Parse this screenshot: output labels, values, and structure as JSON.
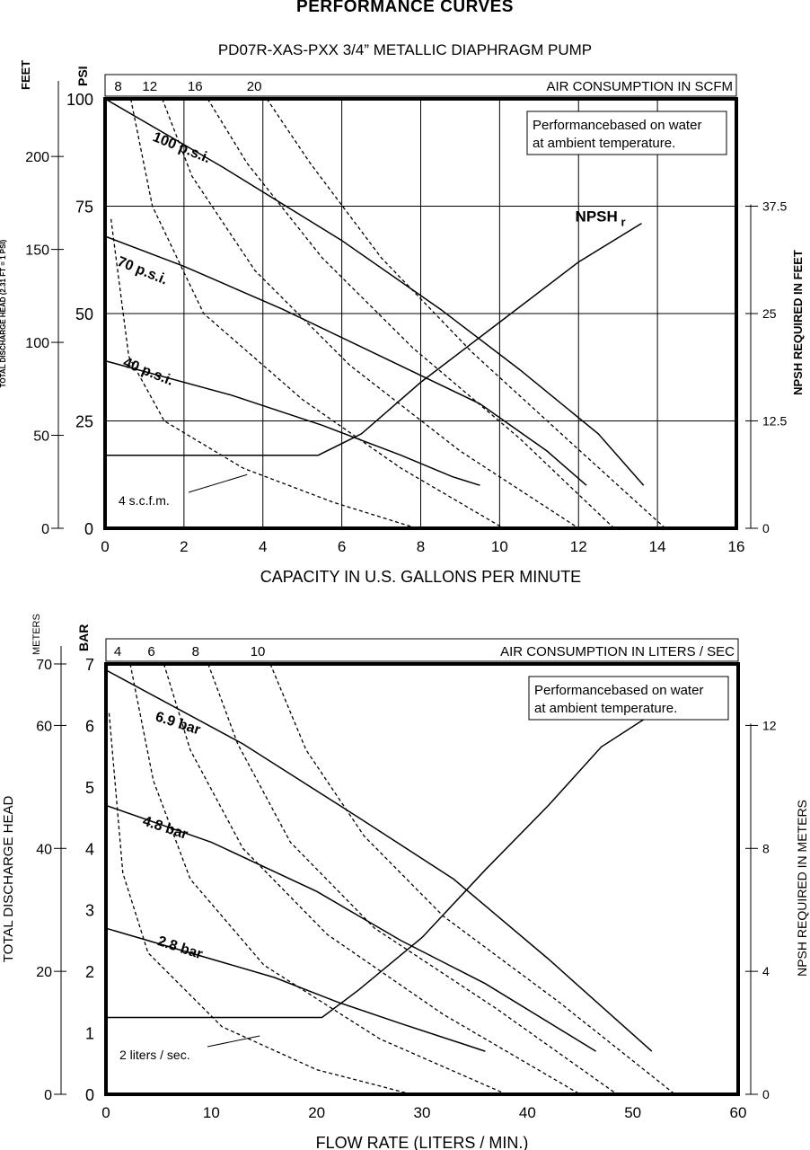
{
  "page": {
    "heading": "PERFORMANCE CURVES",
    "subheading": "PD07R-XAS-PXX 3/4” METALLIC DIAPHRAGM PUMP"
  },
  "chart_data": [
    {
      "type": "line",
      "air_axis_label": "AIR CONSUMPTION IN SCFM",
      "air_ticks": [
        8,
        12,
        16,
        20
      ],
      "xlabel": "CAPACITY IN U.S. GALLONS PER MINUTE",
      "xlim": [
        0,
        16
      ],
      "xticks": [
        0,
        2,
        4,
        6,
        8,
        10,
        12,
        14,
        16
      ],
      "ylabel": "PSI",
      "ylim": [
        0,
        100
      ],
      "yticks": [
        0,
        25,
        50,
        75,
        100
      ],
      "y_outer_label": "FEET",
      "y_outer_sublabel": "TOTAL DISCHARGE HEAD (2.31 FT = 1 PSI)",
      "y_outer_lim": [
        0,
        231
      ],
      "y_outer_ticks": [
        0,
        50,
        100,
        150,
        200
      ],
      "y2label": "NPSH REQUIRED IN FEET",
      "y2lim": [
        0,
        50
      ],
      "y2ticks": [
        0,
        12.5,
        25,
        37.5
      ],
      "grid": true,
      "note_line1": "Performancebased on water",
      "note_line2": "at ambient temperature.",
      "npsh_label": "NPSH",
      "npsh_sub": "r",
      "air_label": "4 s.c.f.m.",
      "air_label_points_to": [
        3.6,
        12.5
      ],
      "pressure_series": [
        {
          "name": "100 p.s.i.",
          "label_at": [
            1.05,
            92
          ],
          "x": [
            0,
            3,
            6,
            8.5,
            10.5,
            12.5,
            13.65
          ],
          "y": [
            100,
            84,
            67,
            51,
            37,
            22,
            10
          ]
        },
        {
          "name": "70 p.s.i.",
          "label_at": [
            0.15,
            63
          ],
          "x": [
            0,
            2,
            4.5,
            7,
            9.5,
            11.2,
            12.2
          ],
          "y": [
            68,
            61,
            51,
            40,
            29,
            18,
            10
          ]
        },
        {
          "name": "40 p.s.i.",
          "label_at": [
            0.3,
            39.5
          ],
          "x": [
            0,
            3.2,
            5.5,
            7.5,
            8.8,
            9.5
          ],
          "y": [
            39,
            31,
            24,
            17,
            12,
            10
          ]
        }
      ],
      "air_series": [
        {
          "name": "4",
          "x": [
            0.15,
            0.6,
            1.5,
            3.5,
            5.8,
            7.9
          ],
          "y": [
            72,
            40,
            25,
            14,
            6,
            0
          ]
        },
        {
          "name": "8",
          "x": [
            0.65,
            1.2,
            2.5,
            5,
            7.5,
            10.1
          ],
          "y": [
            100,
            75,
            50,
            30,
            14,
            0
          ]
        },
        {
          "name": "12",
          "x": [
            1.45,
            2.2,
            3.8,
            6.2,
            9,
            12
          ],
          "y": [
            100,
            82,
            60,
            38,
            18,
            0
          ]
        },
        {
          "name": "16",
          "x": [
            2.6,
            3.6,
            5.5,
            7.8,
            10.5,
            12.9
          ],
          "y": [
            100,
            85,
            63,
            42,
            21,
            0
          ]
        },
        {
          "name": "20",
          "x": [
            4.1,
            5.2,
            7,
            9.3,
            11.8,
            14.2
          ],
          "y": [
            100,
            85,
            63,
            41,
            20,
            0
          ]
        }
      ],
      "npsh_series": {
        "x": [
          0,
          5.4,
          6.5,
          8,
          10,
          12,
          13.6
        ],
        "y": [
          8.5,
          8.5,
          11,
          17,
          24,
          31,
          35.5
        ]
      }
    },
    {
      "type": "line",
      "air_axis_label": "AIR CONSUMPTION IN LITERS / SEC",
      "air_ticks": [
        4,
        6,
        8,
        10
      ],
      "xlabel": "FLOW RATE (LITERS / MIN.)",
      "xlim": [
        0,
        60
      ],
      "xticks": [
        0,
        10,
        20,
        30,
        40,
        50,
        60
      ],
      "ylabel": "BAR",
      "ylim": [
        0,
        7
      ],
      "yticks": [
        0,
        1,
        2,
        3,
        4,
        5,
        6,
        7
      ],
      "y_outer_label": "METERS",
      "y_outer_sublabel": "TOTAL DISCHARGE HEAD",
      "y_outer_lim": [
        0,
        70
      ],
      "y_outer_ticks": [
        0,
        20,
        40,
        60,
        70
      ],
      "y2label": "NPSH REQUIRED IN METERS",
      "y2lim": [
        0,
        14
      ],
      "y2ticks": [
        0,
        4,
        8,
        12
      ],
      "grid": false,
      "note_line1": "Performancebased on water",
      "note_line2": "at ambient temperature.",
      "npsh_label": "NPSH",
      "npsh_sub": "r",
      "air_label": "2 liters / sec.",
      "air_label_points_to": [
        14.6,
        0.95
      ],
      "pressure_series": [
        {
          "name": "6.9 bar",
          "label_at": [
            4.1,
            6.2
          ],
          "x": [
            0,
            13,
            24,
            33,
            42,
            51.8
          ],
          "y": [
            6.9,
            5.7,
            4.5,
            3.5,
            2.2,
            0.7
          ]
        },
        {
          "name": "4.8 bar",
          "label_at": [
            2.9,
            4.5
          ],
          "x": [
            0,
            10,
            20,
            28,
            36,
            46.5
          ],
          "y": [
            4.7,
            4.1,
            3.3,
            2.5,
            1.8,
            0.7
          ]
        },
        {
          "name": "2.8 bar",
          "label_at": [
            4.3,
            2.55
          ],
          "x": [
            0,
            8,
            16,
            22,
            28,
            36
          ],
          "y": [
            2.7,
            2.3,
            1.9,
            1.5,
            1.15,
            0.7
          ]
        }
      ],
      "air_series": [
        {
          "name": "2",
          "x": [
            0.3,
            1.6,
            4,
            11,
            20,
            29
          ],
          "y": [
            6.2,
            3.6,
            2.3,
            1.1,
            0.4,
            0
          ]
        },
        {
          "name": "4",
          "x": [
            2.3,
            4.5,
            8,
            15,
            26,
            38
          ],
          "y": [
            7,
            5.1,
            3.5,
            2.1,
            0.9,
            0
          ]
        },
        {
          "name": "6",
          "x": [
            5.5,
            8,
            13,
            21,
            32,
            45
          ],
          "y": [
            7,
            5.6,
            4,
            2.6,
            1.3,
            0
          ]
        },
        {
          "name": "8",
          "x": [
            9.7,
            12.5,
            17.5,
            25.5,
            37,
            48.5
          ],
          "y": [
            7,
            5.7,
            4.1,
            2.7,
            1.4,
            0
          ]
        },
        {
          "name": "10",
          "x": [
            15.6,
            19,
            24.5,
            32,
            43,
            54
          ],
          "y": [
            7,
            5.6,
            4.2,
            2.9,
            1.5,
            0
          ]
        }
      ],
      "npsh_series": {
        "x": [
          0,
          20.5,
          24,
          30,
          36,
          42,
          47,
          51.5
        ],
        "y": [
          2.5,
          2.5,
          3.4,
          5.1,
          7.3,
          9.4,
          11.3,
          12.3
        ]
      }
    }
  ]
}
